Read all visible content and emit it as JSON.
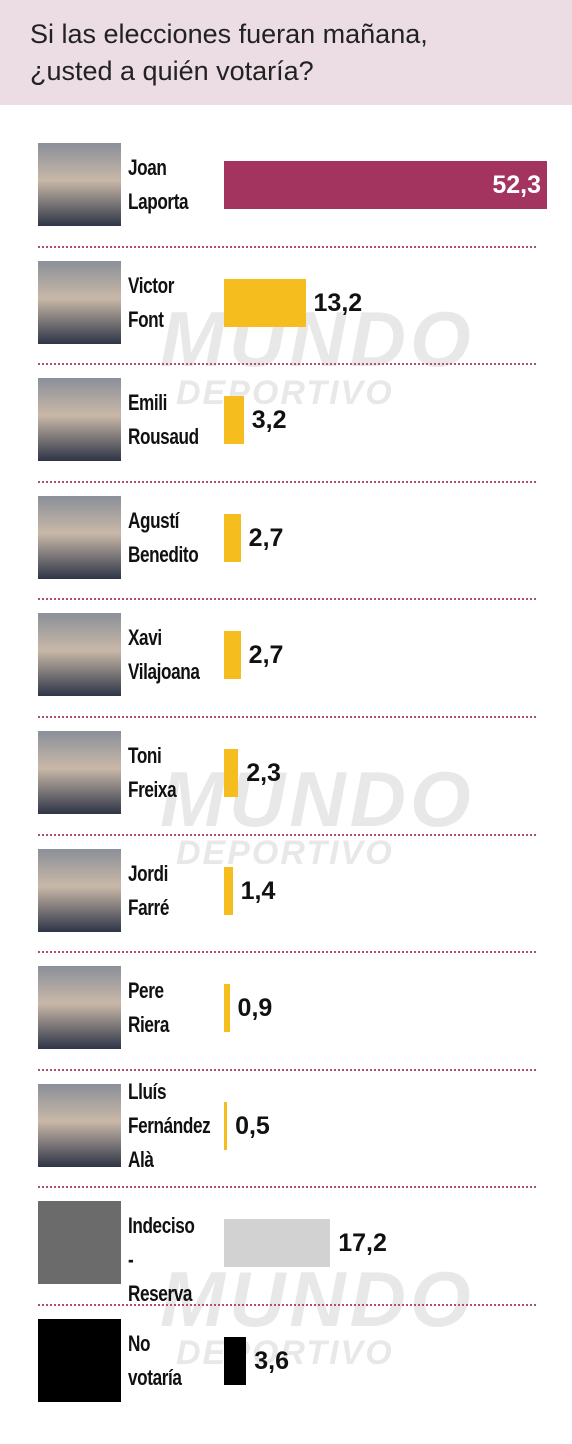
{
  "chart_data": {
    "type": "bar",
    "title": "Si las elecciones fueran mañana,\n¿usted a quién votaría?",
    "categories": [
      "Joan\nLaporta",
      "Victor\nFont",
      "Emili\nRousaud",
      "Agustí\nBenedito",
      "Xavi\nVilajoana",
      "Toni\nFreixa",
      "Jordi\nFarré",
      "Pere\nRiera",
      "Lluís\nFernández\nAlà",
      "Indeciso -\nReserva",
      "No\nvotaría"
    ],
    "values": [
      52.3,
      13.2,
      3.2,
      2.7,
      2.7,
      2.3,
      1.4,
      0.9,
      0.5,
      17.2,
      3.6
    ],
    "value_labels": [
      "52,3",
      "13,2",
      "3,2",
      "2,7",
      "2,7",
      "2,3",
      "1,4",
      "0,9",
      "0,5",
      "17,2",
      "3,6"
    ],
    "colors": [
      "#a3335f",
      "#f5be1e",
      "#f5be1e",
      "#f5be1e",
      "#f5be1e",
      "#f5be1e",
      "#f5be1e",
      "#f5be1e",
      "#f5be1e",
      "#d2d2d2",
      "#000000"
    ],
    "watermark": [
      "MUNDO",
      "DEPORTIVO"
    ]
  }
}
